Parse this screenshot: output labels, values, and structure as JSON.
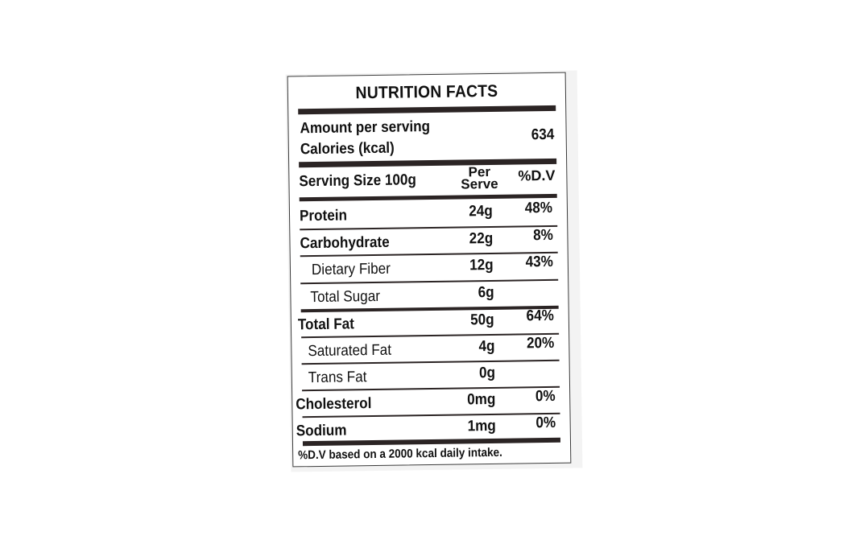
{
  "label": {
    "title": "NUTRITION FACTS",
    "amount_line1": "Amount per serving",
    "amount_line2": "Calories (kcal)",
    "calories": "634",
    "serving_size": "Serving Size 100g",
    "col_per_serve_line1": "Per",
    "col_per_serve_line2": "Serve",
    "col_dv": "%D.V",
    "rows": [
      {
        "name": "Protein",
        "per_serve": "24g",
        "dv": "48%"
      },
      {
        "name": "Carbohydrate",
        "per_serve": "22g",
        "dv": "8%"
      },
      {
        "name": "Dietary Fiber",
        "per_serve": "12g",
        "dv": "43%"
      },
      {
        "name": "Total Sugar",
        "per_serve": "6g",
        "dv": ""
      },
      {
        "name": "Total Fat",
        "per_serve": "50g",
        "dv": "64%"
      },
      {
        "name": "Saturated Fat",
        "per_serve": "4g",
        "dv": "20%"
      },
      {
        "name": "Trans Fat",
        "per_serve": "0g",
        "dv": ""
      },
      {
        "name": "Cholesterol",
        "per_serve": "0mg",
        "dv": "0%"
      },
      {
        "name": "Sodium",
        "per_serve": "1mg",
        "dv": "0%"
      }
    ],
    "footnote": "%D.V based on a 2000 kcal daily intake."
  },
  "colors": {
    "ink": "#111111",
    "rule": "#2b2424",
    "border": "#3a3a3a",
    "background": "#ffffff"
  }
}
